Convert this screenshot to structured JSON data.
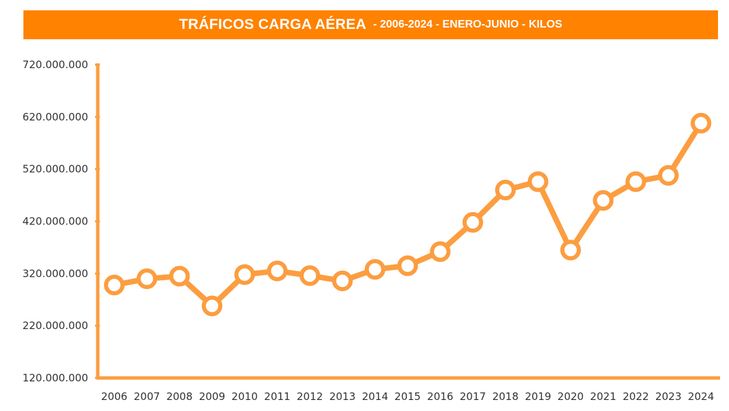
{
  "header": {
    "title": "TRÁFICOS CARGA AÉREA",
    "subtitle": "- 2006-2024 - ENERO-JUNIO - KILOS"
  },
  "colors": {
    "accent": "#ff8200",
    "line": "#fc9d40",
    "marker_fill": "#ffffff",
    "text": "#333333"
  },
  "chart_data": {
    "type": "line",
    "title": "TRÁFICOS CARGA AÉREA - 2006-2024 - ENERO-JUNIO - KILOS",
    "xlabel": "",
    "ylabel": "",
    "categories": [
      "2006",
      "2007",
      "2008",
      "2009",
      "2010",
      "2011",
      "2012",
      "2013",
      "2014",
      "2015",
      "2016",
      "2017",
      "2018",
      "2019",
      "2020",
      "2021",
      "2022",
      "2023",
      "2024"
    ],
    "series": [
      {
        "values": [
          298000000,
          310000000,
          315000000,
          258000000,
          318000000,
          325000000,
          316000000,
          306000000,
          328000000,
          335000000,
          362000000,
          418000000,
          480000000,
          496000000,
          365000000,
          460000000,
          496000000,
          508000000,
          608000000
        ]
      }
    ],
    "ylim": [
      120000000,
      720000000
    ],
    "yticks": [
      120000000,
      220000000,
      320000000,
      420000000,
      520000000,
      620000000,
      720000000
    ],
    "ytick_labels": [
      "120.000.000",
      "220.000.000",
      "320.000.000",
      "420.000.000",
      "520.000.000",
      "620.000.000",
      "720.000.000"
    ],
    "grid": false,
    "legend": "none"
  }
}
